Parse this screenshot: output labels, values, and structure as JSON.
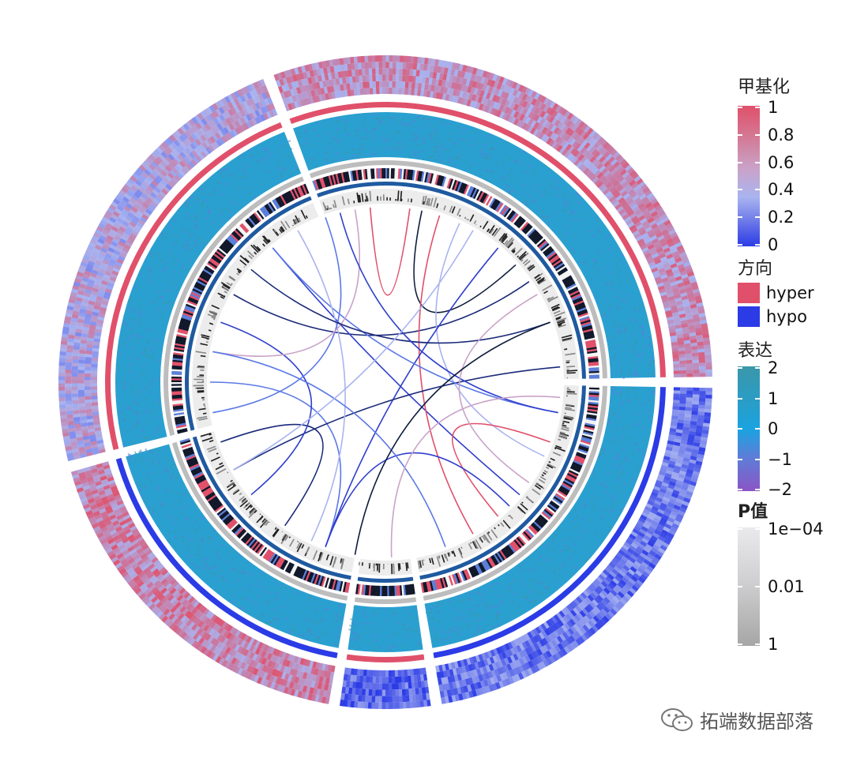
{
  "chart_data": {
    "type": "circos",
    "sectors": 5,
    "tracks": [
      "甲基化 heatmap",
      "方向",
      "表达 heatmap",
      "P值",
      "links"
    ],
    "legends": {
      "methylation": {
        "title": "甲基化",
        "ticks": [
          "1",
          "0.8",
          "0.6",
          "0.4",
          "0.2",
          "0"
        ],
        "colors": [
          "#e0506a",
          "#c9a3c9",
          "#a9b4f0",
          "#2b3be6"
        ]
      },
      "direction": {
        "title": "方向",
        "items": [
          {
            "label": "hyper",
            "color": "#e0506a"
          },
          {
            "label": "hypo",
            "color": "#2b3be6"
          }
        ]
      },
      "expression": {
        "title": "表达",
        "ticks": [
          "2",
          "1",
          "0",
          "−1",
          "−2"
        ],
        "colors": [
          "#3a97a9",
          "#1aa3e0",
          "#5b7fd8",
          "#8b55c5"
        ]
      },
      "pvalue": {
        "title_bold": "P",
        "title_rest": "值",
        "ticks": [
          "1e−04",
          "0.01",
          "1"
        ],
        "colors": [
          "#e8e8ea",
          "#bcbcbe",
          "#a6a6a6"
        ]
      }
    }
  },
  "watermark": "拓端数据部落"
}
